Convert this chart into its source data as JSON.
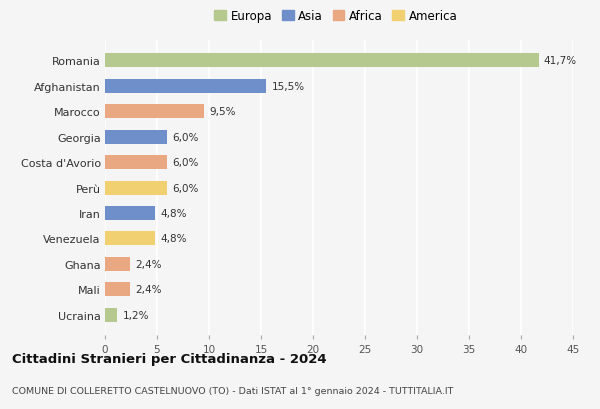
{
  "categories": [
    "Romania",
    "Afghanistan",
    "Marocco",
    "Georgia",
    "Costa d'Avorio",
    "Perù",
    "Iran",
    "Venezuela",
    "Ghana",
    "Mali",
    "Ucraina"
  ],
  "values": [
    41.7,
    15.5,
    9.5,
    6.0,
    6.0,
    6.0,
    4.8,
    4.8,
    2.4,
    2.4,
    1.2
  ],
  "labels": [
    "41,7%",
    "15,5%",
    "9,5%",
    "6,0%",
    "6,0%",
    "6,0%",
    "4,8%",
    "4,8%",
    "2,4%",
    "2,4%",
    "1,2%"
  ],
  "colors": [
    "#b5c98e",
    "#6e8fc9",
    "#e9a882",
    "#6e8fc9",
    "#e9a882",
    "#f0d070",
    "#6e8fc9",
    "#f0d070",
    "#e9a882",
    "#e9a882",
    "#b5c98e"
  ],
  "legend_labels": [
    "Europa",
    "Asia",
    "Africa",
    "America"
  ],
  "legend_colors": [
    "#b5c98e",
    "#6e8fc9",
    "#e9a882",
    "#f0d070"
  ],
  "xlim": [
    0,
    45
  ],
  "xticks": [
    0,
    5,
    10,
    15,
    20,
    25,
    30,
    35,
    40,
    45
  ],
  "title": "Cittadini Stranieri per Cittadinanza - 2024",
  "subtitle": "COMUNE DI COLLERETTO CASTELNUOVO (TO) - Dati ISTAT al 1° gennaio 2024 - TUTTITALIA.IT",
  "bg_color": "#f5f5f5",
  "grid_color": "#ffffff",
  "bar_height": 0.55
}
